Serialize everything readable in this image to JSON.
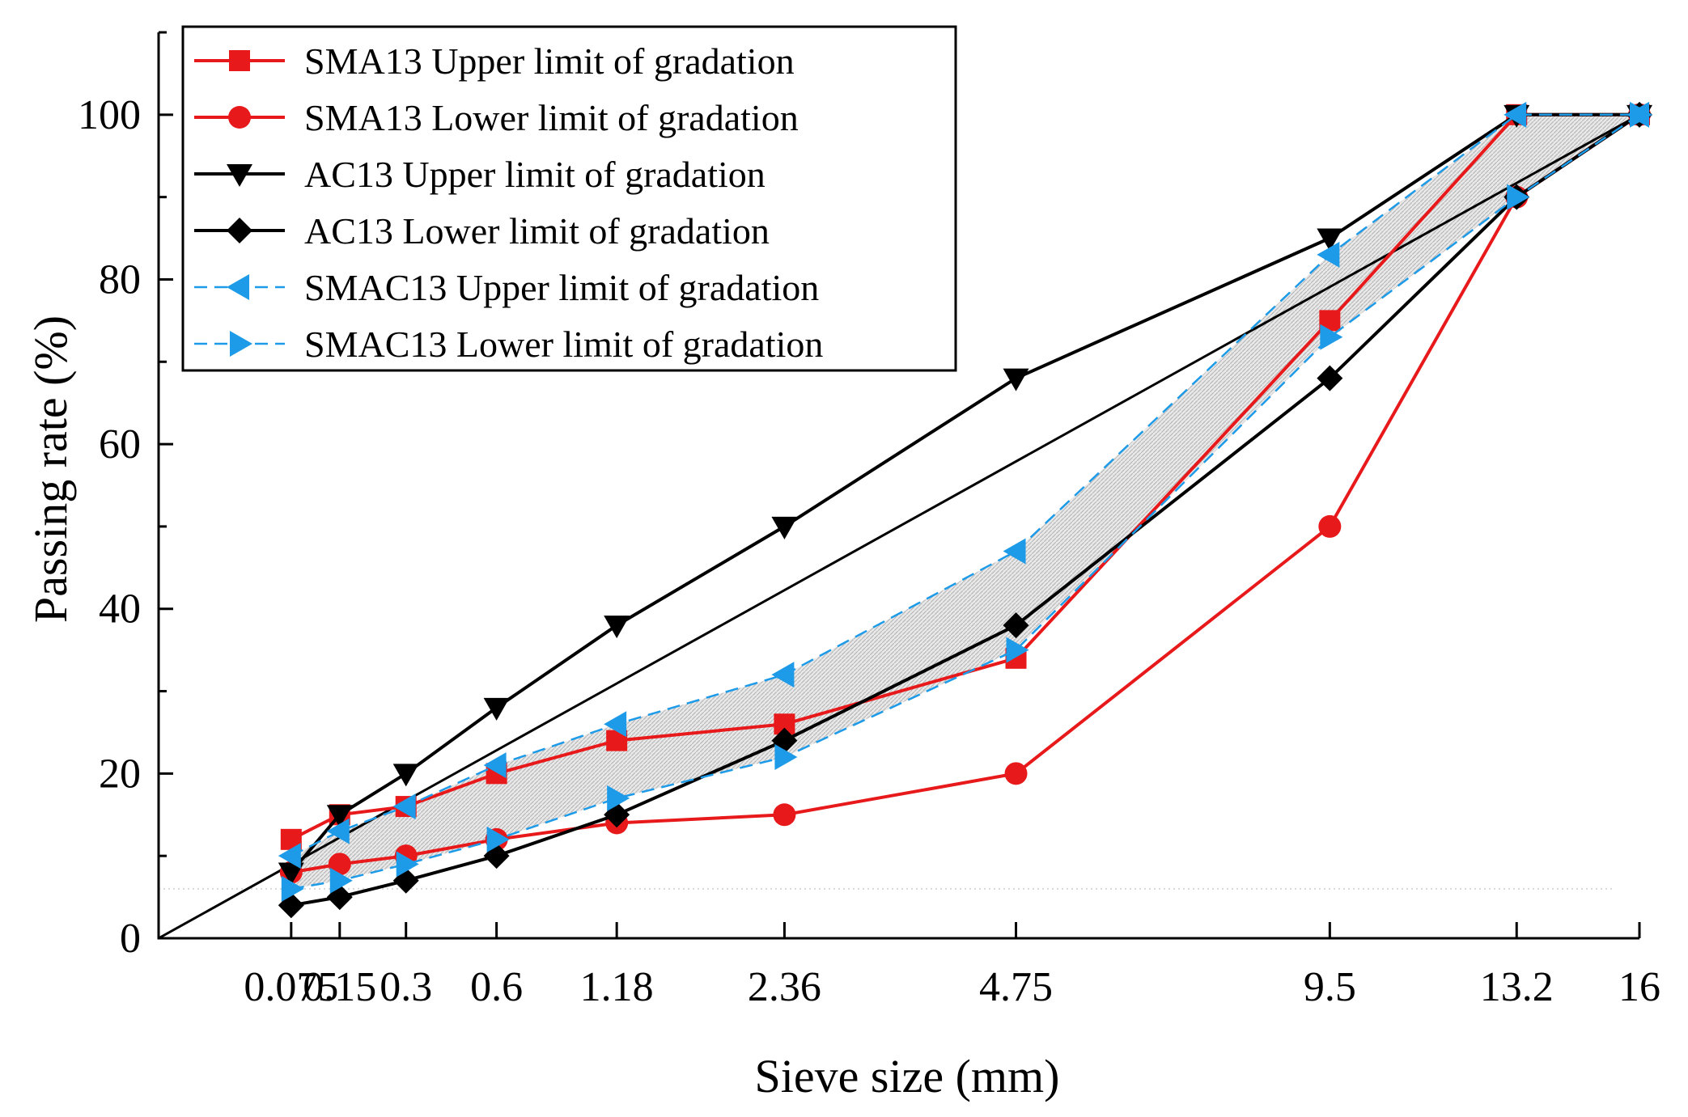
{
  "chart_data": {
    "type": "line",
    "title": "",
    "xlabel": "Sieve size (mm)",
    "ylabel": "Passing rate (%)",
    "x_scale": "power 0.45 (gradation chart)",
    "categories": [
      "0.075",
      "0.15",
      "0.3",
      "0.6",
      "1.18",
      "2.36",
      "4.75",
      "9.5",
      "13.2",
      "16"
    ],
    "x_tick_labels": [
      "0.075",
      "0.15",
      "0.3",
      "0.6",
      "1.18",
      "2.36",
      "4.75",
      "9.5",
      "13.2",
      "16"
    ],
    "x": [
      0.075,
      0.15,
      0.3,
      0.6,
      1.18,
      2.36,
      4.75,
      9.5,
      13.2,
      16
    ],
    "xlim": [
      0,
      16
    ],
    "ylim": [
      0,
      110
    ],
    "y_ticks": [
      0,
      20,
      40,
      60,
      80,
      100
    ],
    "y_tick_labels": [
      "0",
      "20",
      "40",
      "60",
      "80",
      "100"
    ],
    "grid": false,
    "legend_position": "top-left",
    "series": [
      {
        "name": "SMA13 Upper limit of gradation",
        "color": "#e8191b",
        "marker": "square",
        "dash": "solid",
        "values": [
          12,
          15,
          16,
          20,
          24,
          26,
          34,
          75,
          100,
          100
        ]
      },
      {
        "name": "SMA13 Lower limit of gradation",
        "color": "#e8191b",
        "marker": "circle",
        "dash": "solid",
        "values": [
          8,
          9,
          10,
          12,
          14,
          15,
          20,
          50,
          90,
          100
        ]
      },
      {
        "name": "AC13 Upper limit of gradation",
        "color": "#000000",
        "marker": "triangle-down",
        "dash": "solid",
        "values": [
          8,
          15,
          20,
          28,
          38,
          50,
          68,
          85,
          100,
          100
        ]
      },
      {
        "name": "AC13 Lower limit of gradation",
        "color": "#000000",
        "marker": "diamond",
        "dash": "solid",
        "values": [
          4,
          5,
          7,
          10,
          15,
          24,
          38,
          68,
          90,
          100
        ]
      },
      {
        "name": "SMAC13 Upper limit of gradation",
        "color": "#1e9be8",
        "marker": "triangle-left",
        "dash": "dashed",
        "values": [
          10,
          13,
          16,
          21,
          26,
          32,
          47,
          83,
          100,
          100
        ]
      },
      {
        "name": "SMAC13 Lower limit of gradation",
        "color": "#1e9be8",
        "marker": "triangle-right",
        "dash": "dashed",
        "values": [
          6,
          7,
          9,
          12,
          17,
          22,
          35,
          73,
          90,
          100
        ]
      }
    ],
    "annotations": [
      {
        "type": "maximum-density-line",
        "from": [
          0,
          0
        ],
        "to": [
          16,
          100
        ],
        "color": "#000000"
      },
      {
        "type": "shaded-band",
        "between": [
          "SMAC13 Upper limit of gradation",
          "SMAC13 Lower limit of gradation"
        ],
        "color": "#bdbdbd"
      }
    ]
  }
}
